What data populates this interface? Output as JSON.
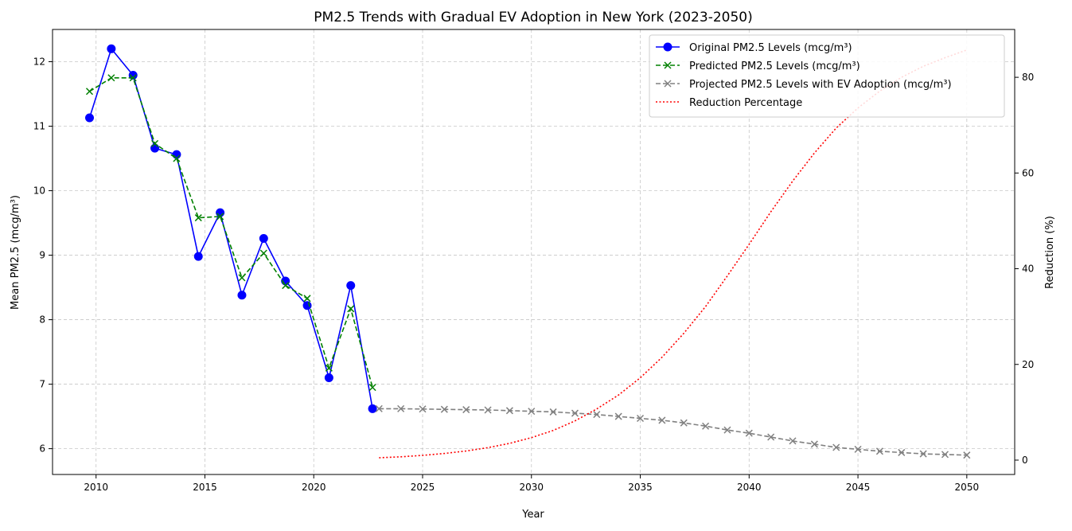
{
  "chart_data": {
    "type": "line",
    "title": "PM2.5 Trends with Gradual EV Adoption in New York (2023-2050)",
    "xlabel": "Year",
    "ylabel": "Mean PM2.5 (mcg/m³)",
    "y2label": "Reduction (%)",
    "xlim": [
      2008,
      2052.2
    ],
    "ylim": [
      5.6,
      12.5
    ],
    "y2lim": [
      -3,
      90
    ],
    "xticks": [
      2010,
      2015,
      2020,
      2025,
      2030,
      2035,
      2040,
      2045,
      2050
    ],
    "yticks": [
      6,
      7,
      8,
      9,
      10,
      11,
      12
    ],
    "y2ticks": [
      0,
      20,
      40,
      60,
      80
    ],
    "grid": true,
    "legend_position": "upper right",
    "series": [
      {
        "name": "Original PM2.5 Levels (mcg/m³)",
        "axis": "left",
        "color": "#0000ff",
        "style": "solid",
        "marker": "circle",
        "x": [
          2009.7,
          2010.7,
          2011.7,
          2012.7,
          2013.7,
          2014.7,
          2015.7,
          2016.7,
          2017.7,
          2018.7,
          2019.7,
          2020.7,
          2021.7,
          2022.7
        ],
        "y": [
          11.13,
          12.2,
          11.79,
          10.66,
          10.56,
          8.98,
          9.66,
          8.38,
          9.26,
          8.6,
          8.22,
          7.1,
          8.53,
          6.62
        ]
      },
      {
        "name": "Predicted PM2.5 Levels (mcg/m³)",
        "axis": "left",
        "color": "#008000",
        "style": "dashed",
        "marker": "x",
        "x": [
          2009.7,
          2010.7,
          2011.7,
          2012.7,
          2013.7,
          2014.7,
          2015.7,
          2016.7,
          2017.7,
          2018.7,
          2019.7,
          2020.7,
          2021.7,
          2022.7
        ],
        "y": [
          11.54,
          11.75,
          11.75,
          10.73,
          10.5,
          9.58,
          9.6,
          8.65,
          9.03,
          8.53,
          8.33,
          7.25,
          8.17,
          6.95
        ]
      },
      {
        "name": "Projected PM2.5 Levels with EV Adoption (mcg/m³)",
        "axis": "left",
        "color": "#808080",
        "style": "dashed",
        "marker": "x",
        "x": [
          2023,
          2024,
          2025,
          2026,
          2027,
          2028,
          2029,
          2030,
          2031,
          2032,
          2033,
          2034,
          2035,
          2036,
          2037,
          2038,
          2039,
          2040,
          2041,
          2042,
          2043,
          2044,
          2045,
          2046,
          2047,
          2048,
          2049,
          2050
        ],
        "y": [
          6.62,
          6.62,
          6.615,
          6.61,
          6.605,
          6.6,
          6.59,
          6.58,
          6.57,
          6.55,
          6.53,
          6.5,
          6.47,
          6.44,
          6.4,
          6.35,
          6.29,
          6.24,
          6.18,
          6.12,
          6.07,
          6.02,
          5.99,
          5.96,
          5.94,
          5.92,
          5.91,
          5.9
        ]
      },
      {
        "name": "Reduction Percentage",
        "axis": "right",
        "color": "#ff0000",
        "style": "dotted",
        "marker": "none",
        "x": [
          2023,
          2024,
          2025,
          2026,
          2027,
          2028,
          2029,
          2030,
          2031,
          2032,
          2033,
          2034,
          2035,
          2036,
          2037,
          2038,
          2039,
          2040,
          2041,
          2042,
          2043,
          2044,
          2045,
          2046,
          2047,
          2048,
          2049,
          2050
        ],
        "y": [
          0.5,
          0.7,
          1.0,
          1.4,
          1.9,
          2.6,
          3.5,
          4.7,
          6.2,
          8.2,
          10.7,
          13.6,
          17.2,
          21.5,
          26.5,
          32.1,
          38.5,
          45.1,
          51.9,
          58.3,
          64.2,
          69.4,
          73.6,
          77.1,
          80.0,
          82.3,
          84.1,
          85.7
        ]
      }
    ]
  }
}
